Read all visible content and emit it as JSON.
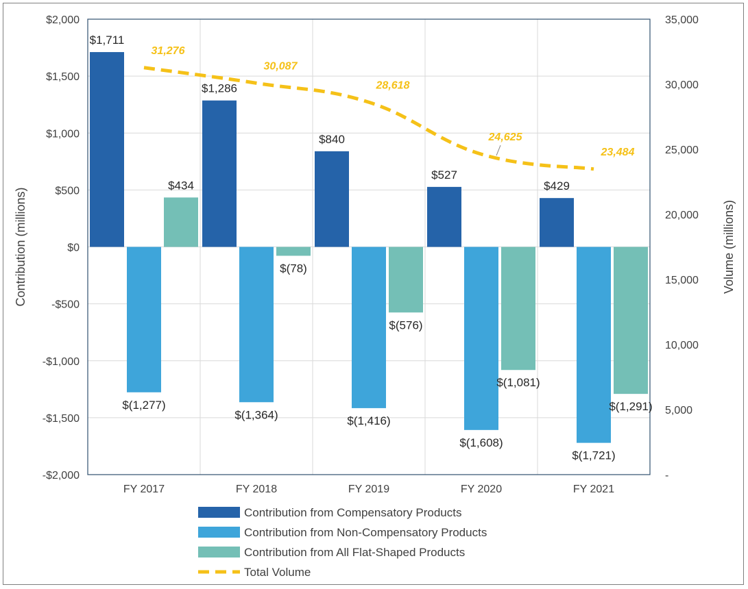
{
  "chart_data": {
    "type": "bar",
    "categories": [
      "FY 2017",
      "FY 2018",
      "FY 2019",
      "FY 2020",
      "FY 2021"
    ],
    "y_axis": {
      "label": "Contribution (millions)",
      "range": [
        -2000,
        2000
      ],
      "ticks": [
        2000,
        1500,
        1000,
        500,
        0,
        -500,
        -1000,
        -1500,
        -2000
      ],
      "tick_labels": [
        "$2,000",
        "$1,500",
        "$1,000",
        "$500",
        "$0",
        "-$500",
        "-$1,000",
        "-$1,500",
        "-$2,000"
      ]
    },
    "y2_axis": {
      "label": "Volume (millions)",
      "range": [
        0,
        35000
      ],
      "ticks": [
        35000,
        30000,
        25000,
        20000,
        15000,
        10000,
        5000,
        0
      ],
      "tick_labels": [
        "35,000",
        "30,000",
        "25,000",
        "20,000",
        "15,000",
        "10,000",
        "5,000",
        "-"
      ]
    },
    "grid": true,
    "legend_position": "bottom",
    "series": [
      {
        "name": "Contribution from Compensatory Products",
        "type": "bar",
        "color": "#2563a9",
        "values": [
          1711,
          1286,
          840,
          527,
          429
        ],
        "labels": [
          "$1,711",
          "$1,286",
          "$840",
          "$527",
          "$429"
        ]
      },
      {
        "name": "Contribution from Non-Compensatory Products",
        "type": "bar",
        "color": "#3ea5da",
        "values": [
          -1277,
          -1364,
          -1416,
          -1608,
          -1721
        ],
        "labels": [
          "$(1,277)",
          "$(1,364)",
          "$(1,416)",
          "$(1,608)",
          "$(1,721)"
        ]
      },
      {
        "name": "Contribution from All Flat-Shaped Products",
        "type": "bar",
        "color": "#74bfb6",
        "values": [
          434,
          -78,
          -576,
          -1081,
          -1291
        ],
        "labels": [
          "$434",
          "$(78)",
          "$(576)",
          "$(1,081)",
          "$(1,291)"
        ]
      },
      {
        "name": "Total Volume",
        "type": "line",
        "axis": "y2",
        "style": "dashed",
        "color": "#f5c118",
        "values": [
          31276,
          30087,
          28618,
          24625,
          23484
        ],
        "labels": [
          "31,276",
          "30,087",
          "28,618",
          "24,625",
          "23,484"
        ]
      }
    ]
  }
}
